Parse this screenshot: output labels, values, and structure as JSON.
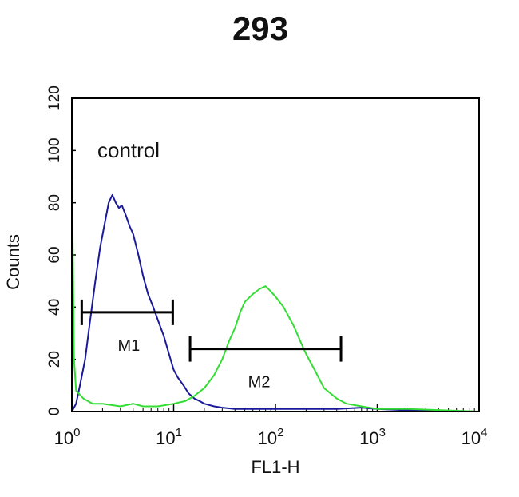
{
  "chart_data": {
    "type": "line",
    "title": "293",
    "xlabel": "FL1-H",
    "ylabel": "Counts",
    "xscale": "log",
    "xlim": [
      1,
      10000
    ],
    "ylim": [
      0,
      120
    ],
    "yticks": [
      "0",
      "20",
      "40",
      "60",
      "80",
      "100",
      "120"
    ],
    "xticks": [
      {
        "base": "10",
        "exp": "0",
        "value": 1
      },
      {
        "base": "10",
        "exp": "1",
        "value": 10
      },
      {
        "base": "10",
        "exp": "2",
        "value": 100
      },
      {
        "base": "10",
        "exp": "3",
        "value": 1000
      },
      {
        "base": "10",
        "exp": "4",
        "value": 10000
      }
    ],
    "annotation": "control",
    "grid": false,
    "colors": {
      "control": "#1a1a9a",
      "sample": "#33dd33",
      "frame": "#000000"
    },
    "series": [
      {
        "key": "control",
        "x": [
          1,
          1.1,
          1.2,
          1.35,
          1.5,
          1.7,
          1.9,
          2.1,
          2.3,
          2.5,
          2.7,
          2.9,
          3.1,
          3.4,
          3.7,
          4.0,
          4.5,
          5.0,
          5.6,
          6.3,
          7.0,
          8.0,
          9.0,
          10,
          11,
          12.5,
          14,
          16,
          18,
          20,
          25,
          30,
          40,
          60,
          100,
          200,
          400,
          700,
          1000,
          2000,
          10000
        ],
        "y": [
          0,
          3,
          10,
          20,
          34,
          50,
          63,
          72,
          80,
          83,
          80,
          78,
          79,
          75,
          71,
          68,
          60,
          52,
          45,
          40,
          35,
          29,
          22,
          16,
          13,
          10,
          7,
          5,
          4,
          3,
          2,
          1.5,
          1,
          1,
          1,
          1,
          1,
          1.5,
          1,
          0.5,
          0
        ]
      },
      {
        "key": "sample",
        "x": [
          1,
          1.05,
          1.1,
          1.3,
          1.6,
          2,
          3,
          4,
          5,
          7,
          10,
          13,
          16,
          20,
          25,
          30,
          35,
          40,
          45,
          50,
          60,
          70,
          80,
          90,
          100,
          120,
          150,
          180,
          200,
          250,
          300,
          400,
          500,
          700,
          1000,
          2000,
          10000
        ],
        "y": [
          95,
          20,
          8,
          5,
          3,
          3,
          2,
          3,
          2,
          2,
          3,
          4,
          6,
          9,
          14,
          20,
          27,
          32,
          38,
          42,
          45,
          47,
          48,
          46,
          44,
          40,
          33,
          26,
          22,
          15,
          9,
          5,
          3,
          2,
          1,
          1,
          0
        ]
      }
    ],
    "markers": [
      {
        "label": "M1",
        "x_start": 1.25,
        "x_end": 9.8,
        "y": 38
      },
      {
        "label": "M2",
        "x_start": 14.5,
        "x_end": 440,
        "y": 24
      }
    ]
  }
}
